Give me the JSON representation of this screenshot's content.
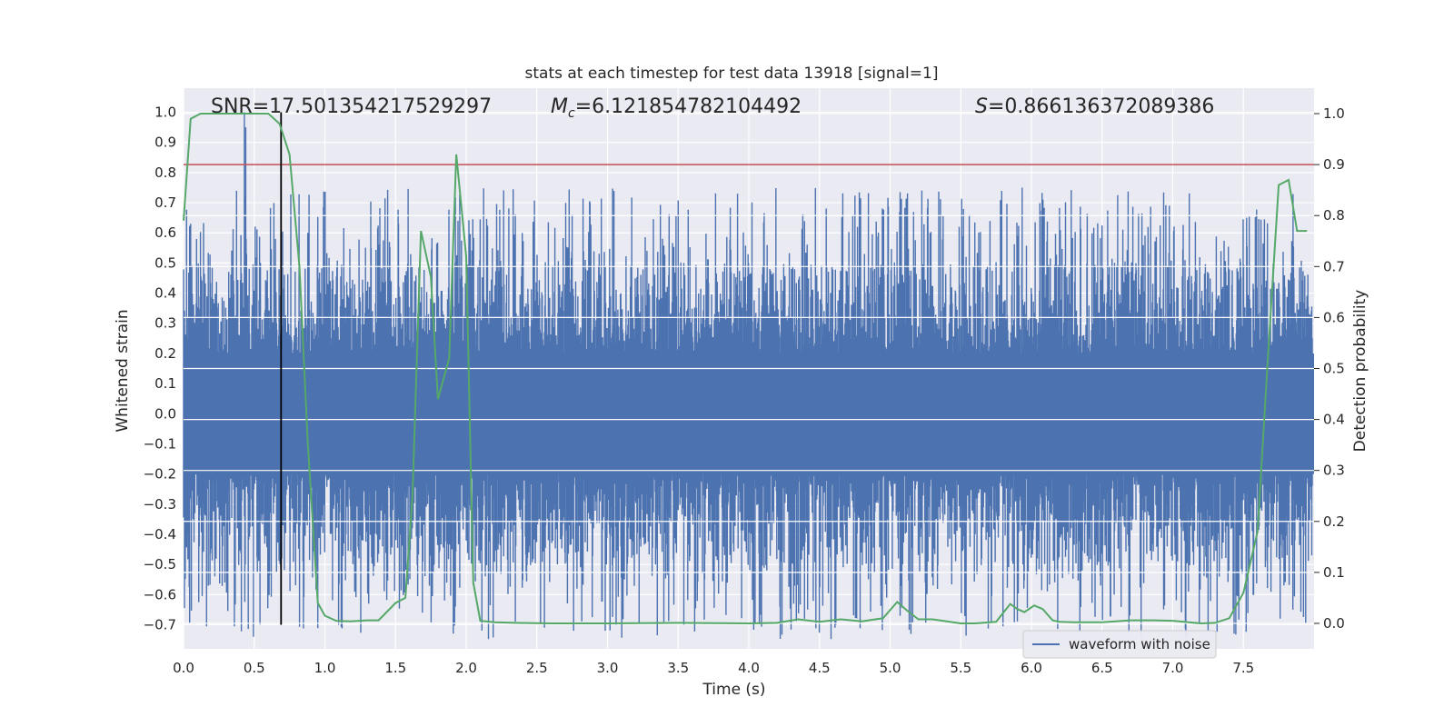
{
  "chart_data": {
    "type": "line",
    "title": "stats at each timestep for test data 13918 [signal=1]",
    "xlabel": "Time (s)",
    "ylabel": "Whitened strain",
    "y2label": "Detection probability",
    "xlim": [
      0.0,
      8.0
    ],
    "ylim": [
      -0.78,
      1.08
    ],
    "y2lim": [
      -0.05,
      1.05
    ],
    "x_ticks": [
      0.0,
      0.5,
      1.0,
      1.5,
      2.0,
      2.5,
      3.0,
      3.5,
      4.0,
      4.5,
      5.0,
      5.5,
      6.0,
      6.5,
      7.0,
      7.5
    ],
    "y_ticks": [
      -0.7,
      -0.6,
      -0.5,
      -0.4,
      -0.3,
      -0.2,
      -0.1,
      0.0,
      0.1,
      0.2,
      0.3,
      0.4,
      0.5,
      0.6,
      0.7,
      0.8,
      0.9,
      1.0
    ],
    "y2_ticks": [
      0.0,
      0.1,
      0.2,
      0.3,
      0.4,
      0.5,
      0.6,
      0.7,
      0.8,
      0.9,
      1.0
    ],
    "grid": true,
    "legend_position": "lower-right",
    "annotations": {
      "snr": "SNR=17.501354217529297",
      "mc_symbol": "M",
      "mc_sub": "c",
      "mc_value": "=6.121854782104492",
      "s_symbol": "S",
      "s_value": "=0.866136372089386"
    },
    "threshold_line": {
      "axis": "y2",
      "value": 0.9,
      "color": "#c44e52"
    },
    "marker_line": {
      "x": 0.69,
      "y_from": -0.7,
      "y_to": 1.0,
      "color": "#000000"
    },
    "series": [
      {
        "name": "waveform with noise",
        "axis": "y",
        "color": "#4c72b0",
        "style": "dense-noise",
        "envelope_core": 0.2,
        "noise_amplitude": 0.55,
        "peaks": [
          {
            "x": 0.05,
            "y": 0.63
          },
          {
            "x": 0.43,
            "y": 1.0
          },
          {
            "x": 0.44,
            "y": 0.95
          },
          {
            "x": 0.65,
            "y": 0.58
          },
          {
            "x": 1.31,
            "y": -0.63
          },
          {
            "x": 2.75,
            "y": 0.66
          },
          {
            "x": 2.76,
            "y": -0.72
          },
          {
            "x": 3.92,
            "y": 0.73
          },
          {
            "x": 4.22,
            "y": -0.64
          },
          {
            "x": 5.56,
            "y": 0.66
          },
          {
            "x": 7.25,
            "y": -0.72
          },
          {
            "x": 7.76,
            "y": -0.68
          },
          {
            "x": 7.85,
            "y": -0.65
          }
        ]
      },
      {
        "name": "detection probability",
        "axis": "y2",
        "color": "#55a868",
        "x": [
          0.0,
          0.05,
          0.12,
          0.2,
          0.3,
          0.4,
          0.5,
          0.6,
          0.68,
          0.75,
          0.82,
          0.88,
          0.95,
          1.0,
          1.08,
          1.18,
          1.3,
          1.38,
          1.5,
          1.57,
          1.62,
          1.68,
          1.75,
          1.8,
          1.88,
          1.93,
          2.0,
          2.05,
          2.1,
          2.2,
          2.35,
          2.6,
          3.0,
          3.5,
          4.0,
          4.2,
          4.35,
          4.5,
          4.65,
          4.8,
          4.95,
          5.05,
          5.12,
          5.2,
          5.3,
          5.4,
          5.5,
          5.6,
          5.75,
          5.85,
          5.9,
          5.95,
          6.02,
          6.08,
          6.15,
          6.2,
          6.3,
          6.5,
          6.7,
          6.85,
          7.0,
          7.2,
          7.3,
          7.4,
          7.5,
          7.6,
          7.68,
          7.75,
          7.82,
          7.88,
          7.95
        ],
        "y": [
          0.79,
          0.99,
          1.0,
          1.0,
          1.0,
          1.0,
          1.0,
          1.0,
          0.98,
          0.92,
          0.7,
          0.35,
          0.04,
          0.015,
          0.005,
          0.004,
          0.006,
          0.006,
          0.04,
          0.05,
          0.25,
          0.77,
          0.68,
          0.44,
          0.52,
          0.92,
          0.72,
          0.08,
          0.005,
          0.002,
          0.001,
          0.0,
          0.0,
          0.001,
          0.0,
          0.001,
          0.008,
          0.003,
          0.008,
          0.004,
          0.01,
          0.042,
          0.025,
          0.008,
          0.008,
          0.004,
          0.0,
          0.0,
          0.003,
          0.038,
          0.028,
          0.022,
          0.035,
          0.028,
          0.006,
          0.003,
          0.002,
          0.002,
          0.006,
          0.006,
          0.005,
          0.0,
          0.001,
          0.01,
          0.06,
          0.18,
          0.55,
          0.86,
          0.87,
          0.77,
          0.77
        ]
      }
    ]
  }
}
